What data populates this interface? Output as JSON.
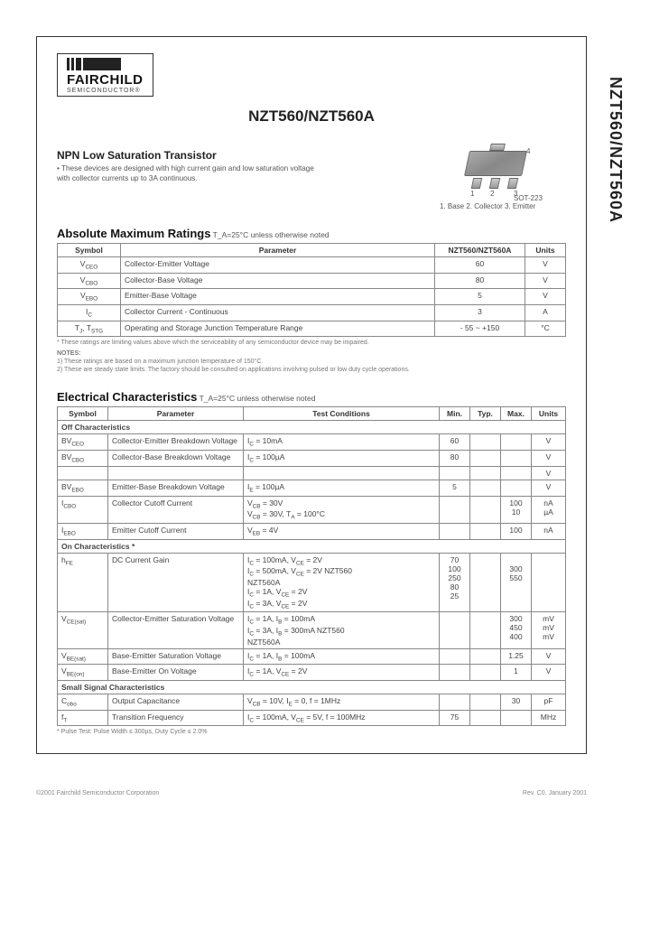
{
  "side_label": "NZT560/NZT560A",
  "logo": {
    "name": "FAIRCHILD",
    "sub": "SEMICONDUCTOR®"
  },
  "part_title": "NZT560/NZT560A",
  "subtitle": "NPN Low Saturation Transistor",
  "bullet": "These devices are designed with high current gain and low saturation voltage with collector currents up to 3A continuous.",
  "package": {
    "name": "SOT-223",
    "pins": "1. Base  2. Collector  3. Emitter",
    "p1": "1",
    "p2": "2",
    "p3": "3",
    "p4": "4"
  },
  "amr": {
    "title": "Absolute Maximum Ratings",
    "note": " T_A=25°C unless otherwise noted",
    "cols": {
      "sym": "Symbol",
      "param": "Parameter",
      "val": "NZT560/NZT560A",
      "unit": "Units"
    },
    "rows": [
      {
        "sym": "V_CEO",
        "param": "Collector-Emitter Voltage",
        "val": "60",
        "unit": "V"
      },
      {
        "sym": "V_CBO",
        "param": "Collector-Base Voltage",
        "val": "80",
        "unit": "V"
      },
      {
        "sym": "V_EBO",
        "param": "Emitter-Base Voltage",
        "val": "5",
        "unit": "V"
      },
      {
        "sym": "I_C",
        "param": "Collector Current            - Continuous",
        "val": "3",
        "unit": "A"
      },
      {
        "sym": "T_J, T_STG",
        "param": "Operating and Storage Junction Temperature Range",
        "val": "- 55 ~ +150",
        "unit": "°C"
      }
    ],
    "footnote": "* These ratings are limiting values above which the serviceability of any semiconductor device may be impaired.",
    "notes_label": "NOTES:",
    "note1": "1)  These ratings are based on a maximum junction temperature of 150°C.",
    "note2": "2)  These are steady state limits. The factory should be consulted on applications involving pulsed or low duty cycle operations."
  },
  "ec": {
    "title": "Electrical Characteristics",
    "note": " T_A=25°C unless otherwise noted",
    "cols": {
      "sym": "Symbol",
      "param": "Parameter",
      "cond": "Test Conditions",
      "min": "Min.",
      "typ": "Typ.",
      "max": "Max.",
      "unit": "Units"
    },
    "sec_off": "Off Characteristics",
    "off": [
      {
        "sym": "BV_CEO",
        "param": "Collector-Emitter Breakdown Voltage",
        "cond": "I_C = 10mA",
        "min": "60",
        "typ": "",
        "max": "",
        "unit": "V"
      },
      {
        "sym": "BV_CBO",
        "param": "Collector-Base Breakdown Voltage",
        "cond": "I_C = 100µA",
        "min": "80",
        "typ": "",
        "max": "",
        "unit": "V"
      },
      {
        "sym": "",
        "param": "",
        "cond": "",
        "min": "",
        "typ": "",
        "max": "",
        "unit": "V"
      },
      {
        "sym": "BV_EBO",
        "param": "Emitter-Base Breakdown Voltage",
        "cond": "I_E = 100µA",
        "min": "5",
        "typ": "",
        "max": "",
        "unit": "V"
      },
      {
        "sym": "I_CBO",
        "param": "Collector Cutoff Current",
        "cond": "V_CB = 30V\nV_CB = 30V, T_A = 100°C",
        "min": "",
        "typ": "",
        "max": "100\n10",
        "unit": "nA\nµA"
      },
      {
        "sym": "I_EBO",
        "param": "Emitter Cutoff Current",
        "cond": "V_EB = 4V",
        "min": "",
        "typ": "",
        "max": "100",
        "unit": "nA"
      }
    ],
    "sec_on": "On Characteristics *",
    "on": [
      {
        "sym": "h_FE",
        "param": "DC Current Gain",
        "cond": "I_C = 100mA, V_CE = 2V\nI_C = 500mA, V_CE = 2V      NZT560\n                                          NZT560A\nI_C = 1A, V_CE = 2V\nI_C = 3A, V_CE = 2V",
        "min": "70\n100\n250\n80\n25",
        "typ": "",
        "max": "\n300\n550",
        "unit": ""
      },
      {
        "sym": "V_CE(sat)",
        "param": "Collector-Emitter Saturation Voltage",
        "cond": "I_C = 1A, I_B = 100mA\nI_C = 3A, I_B = 300mA      NZT560\n                                          NZT560A",
        "min": "",
        "typ": "",
        "max": "300\n450\n400",
        "unit": "mV\nmV\nmV"
      },
      {
        "sym": "V_BE(sat)",
        "param": "Base-Emitter Saturation Voltage",
        "cond": "I_C = 1A, I_B = 100mA",
        "min": "",
        "typ": "",
        "max": "1.25",
        "unit": "V"
      },
      {
        "sym": "V_BE(on)",
        "param": "Base-Emitter On Voltage",
        "cond": "I_C = 1A, V_CE = 2V",
        "min": "",
        "typ": "",
        "max": "1",
        "unit": "V"
      }
    ],
    "sec_ss": "Small Signal Characteristics",
    "ss": [
      {
        "sym": "C_obo",
        "param": "Output Capacitance",
        "cond": "V_CB = 10V, I_E = 0, f = 1MHz",
        "min": "",
        "typ": "",
        "max": "30",
        "unit": "pF"
      },
      {
        "sym": "f_T",
        "param": "Transition Frequency",
        "cond": "I_C = 100mA, V_CE = 5V, f = 100MHz",
        "min": "75",
        "typ": "",
        "max": "",
        "unit": "MHz"
      }
    ],
    "footnote": "* Pulse Test: Pulse Width ≤ 300µs, Duty Cycle ≤ 2.0%"
  },
  "footer": {
    "left": "©2001 Fairchild Semiconductor Corporation",
    "right": "Rev. C0, January 2001"
  }
}
